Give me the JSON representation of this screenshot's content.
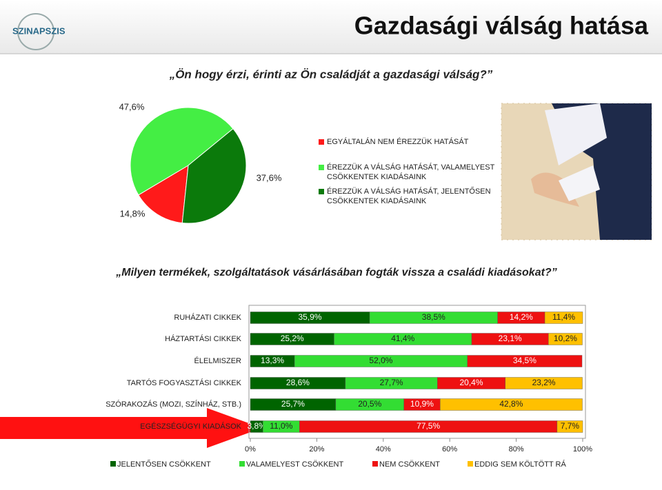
{
  "header": {
    "logo": "SZINAPSZIS",
    "title": "Gazdasági válság hatása"
  },
  "chart_data": [
    {
      "type": "pie",
      "title": "„Ön hogy érzi, érinti az Ön családját a gazdasági válság?”",
      "categories": [
        "EGYÁLTALÁN NEM ÉREZZÜK HATÁSÁT",
        "ÉREZZÜK A VÁLSÁG HATÁSÁT, VALAMELYEST CSÖKKENTEK KIADÁSAINK",
        "ÉREZZÜK A VÁLSÁG HATÁSÁT, JELENTŐSEN CSÖKKENTEK KIADÁSAINK"
      ],
      "values": [
        14.8,
        47.6,
        37.6
      ],
      "value_labels": [
        "14,8%",
        "47,6%",
        "37,6%"
      ],
      "colors": [
        "#ff1a1a",
        "#44ee44",
        "#0b7a0b"
      ],
      "legend": "right"
    },
    {
      "type": "stacked_barh",
      "title": "„Milyen termékek, szolgáltatások vásárlásában fogták vissza a családi kiadásokat?”",
      "categories": [
        "RUHÁZATI CIKKEK",
        "HÁZTARTÁSI CIKKEK",
        "ÉLELMISZER",
        "TARTÓS FOGYASZTÁSI CIKKEK",
        "SZÓRAKOZÁS (MOZI, SZÍNHÁZ, STB.)",
        "EGÉSZSÉGÜGYI KIADÁSOK"
      ],
      "series": [
        {
          "name": "JELENTŐSEN CSÖKKENT",
          "color": "#006400",
          "values": [
            35.9,
            25.2,
            13.3,
            28.6,
            25.7,
            3.8
          ],
          "value_labels": [
            "35,9%",
            "25,2%",
            "13,3%",
            "28,6%",
            "25,7%",
            "3,8%"
          ]
        },
        {
          "name": "VALAMELYEST CSÖKKENT",
          "color": "#33dd33",
          "values": [
            38.5,
            41.4,
            52.0,
            27.7,
            20.5,
            11.0
          ],
          "value_labels": [
            "38,5%",
            "41,4%",
            "52,0%",
            "27,7%",
            "20,5%",
            "11,0%"
          ]
        },
        {
          "name": "NEM CSÖKKENT",
          "color": "#ee1111",
          "values": [
            14.2,
            23.1,
            34.5,
            20.4,
            10.9,
            77.5
          ],
          "value_labels": [
            "14,2%",
            "23,1%",
            "34,5%",
            "20,4%",
            "10,9%",
            "77,5%"
          ]
        },
        {
          "name": "EDDIG SEM KÖLTÖTT RÁ",
          "color": "#ffc000",
          "values": [
            11.4,
            10.2,
            null,
            23.2,
            42.8,
            7.7
          ],
          "value_labels": [
            "11,4%",
            "10,2%",
            null,
            "23,2%",
            "42,8%",
            "7,7%"
          ]
        }
      ],
      "xlim": [
        0,
        100
      ],
      "xticks": [
        {
          "value": 0,
          "label": "0%"
        },
        {
          "value": 20,
          "label": "20%"
        },
        {
          "value": 40,
          "label": "40%"
        },
        {
          "value": 60,
          "label": "60%"
        },
        {
          "value": 80,
          "label": "80%"
        },
        {
          "value": 100,
          "label": "100%"
        }
      ],
      "legend": "bottom"
    }
  ]
}
